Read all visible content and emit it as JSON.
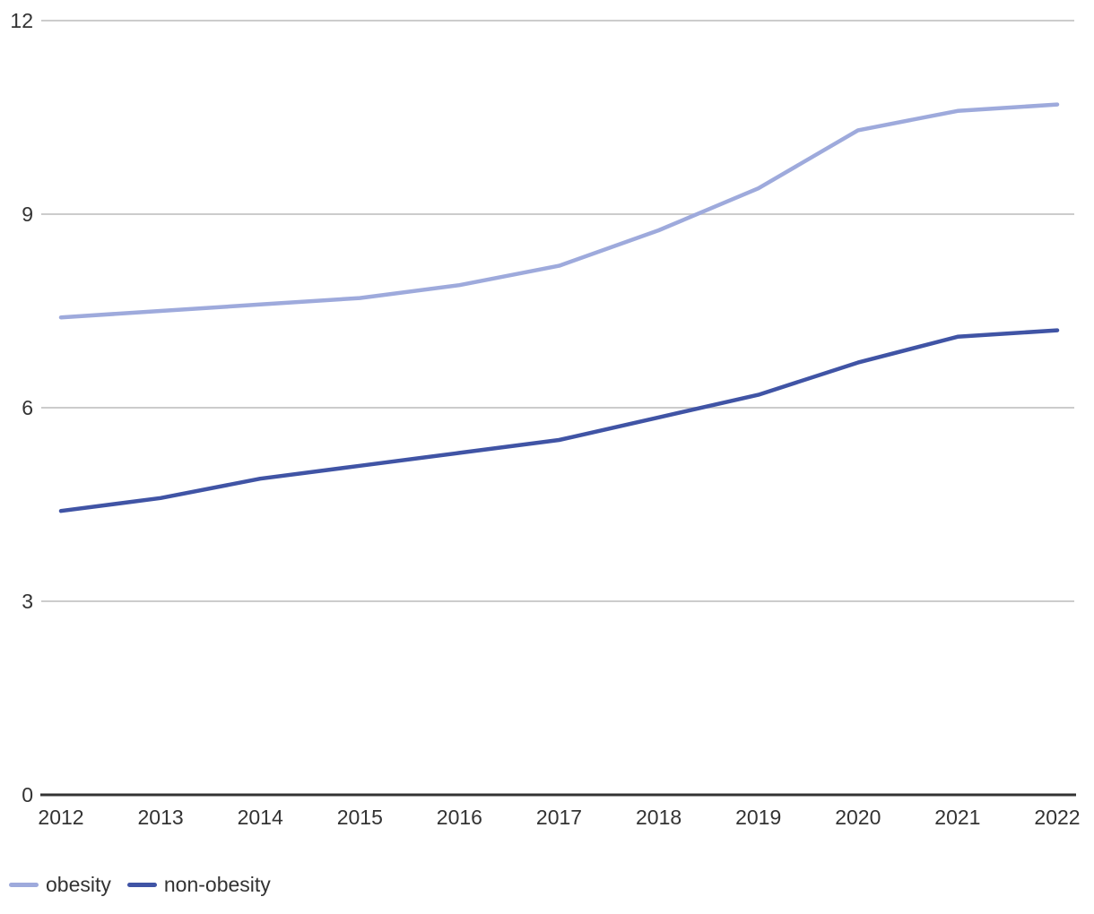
{
  "chart_data": {
    "type": "line",
    "categories": [
      "2012",
      "2013",
      "2014",
      "2015",
      "2016",
      "2017",
      "2018",
      "2019",
      "2020",
      "2021",
      "2022"
    ],
    "series": [
      {
        "name": "obesity",
        "color": "#9EAADC",
        "values": [
          7.4,
          7.5,
          7.6,
          7.7,
          7.9,
          8.2,
          8.75,
          9.4,
          10.3,
          10.6,
          10.7
        ]
      },
      {
        "name": "non-obesity",
        "color": "#4054A5",
        "values": [
          4.4,
          4.6,
          4.9,
          5.1,
          5.3,
          5.5,
          5.85,
          6.2,
          6.7,
          7.1,
          7.2
        ]
      }
    ],
    "title": "",
    "xlabel": "",
    "ylabel": "",
    "y_ticks": [
      0,
      3,
      6,
      9,
      12
    ],
    "ylim": [
      0,
      12
    ],
    "grid": true,
    "legend_position": "bottom-left"
  },
  "colors": {
    "gridline": "#cccccc",
    "axis_line": "#333333",
    "tick_text": "#333333",
    "background": "#ffffff"
  }
}
